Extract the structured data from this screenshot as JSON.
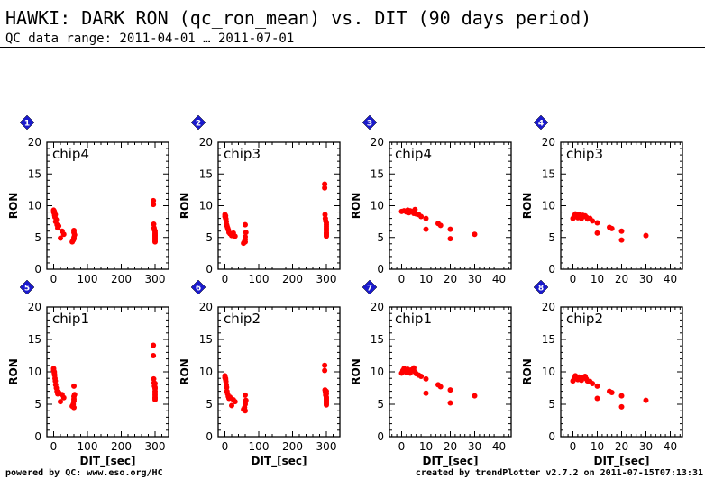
{
  "header": {
    "title": "HAWKI: DARK RON (qc_ron_mean) vs. DIT (90 days period)",
    "subtitle": "QC data range: 2011-04-01 … 2011-07-01"
  },
  "footer": {
    "left": "powered by QC: www.eso.org/HC",
    "right": "created by trendPlotter v2.7.2 on 2011-07-15T07:13:31"
  },
  "colors": {
    "points": "#ff0000",
    "badge": "#1a1acc",
    "axis": "#000000"
  },
  "chart_data": [
    {
      "type": "scatter",
      "panel": "1",
      "label": "chip4",
      "ylabel": "RON",
      "xlabel": "",
      "xlim": [
        -20,
        340
      ],
      "ylim": [
        0,
        20
      ],
      "xticks": [
        0,
        100,
        200,
        300
      ],
      "yticks": [
        0,
        5,
        10,
        15,
        20
      ],
      "series": [
        {
          "x": [
            0,
            0,
            2,
            2,
            3,
            4,
            5,
            6,
            8,
            10,
            12,
            15,
            20,
            25,
            30,
            55,
            58,
            60,
            60,
            62,
            60,
            60,
            295,
            295,
            296,
            297,
            298,
            300,
            300,
            300,
            300,
            300,
            300,
            300,
            300,
            300
          ],
          "y": [
            9.3,
            9.0,
            8.8,
            9.1,
            8.5,
            8.2,
            8.6,
            7.5,
            7.8,
            7.0,
            6.5,
            6.8,
            4.9,
            6.0,
            5.5,
            4.3,
            4.6,
            5.0,
            6.1,
            5.4,
            4.8,
            5.8,
            10.8,
            10.2,
            7.1,
            6.5,
            6.2,
            6.0,
            5.7,
            5.5,
            5.3,
            5.1,
            4.9,
            4.7,
            4.5,
            4.3
          ]
        }
      ]
    },
    {
      "type": "scatter",
      "panel": "2",
      "label": "chip3",
      "ylabel": "RON",
      "xlabel": "",
      "xlim": [
        -20,
        340
      ],
      "ylim": [
        0,
        20
      ],
      "xticks": [
        0,
        100,
        200,
        300
      ],
      "yticks": [
        0,
        5,
        10,
        15,
        20
      ],
      "series": [
        {
          "x": [
            0,
            0,
            2,
            2,
            3,
            4,
            5,
            6,
            8,
            10,
            12,
            15,
            20,
            25,
            30,
            55,
            58,
            60,
            60,
            62,
            60,
            60,
            295,
            295,
            296,
            297,
            298,
            300,
            300,
            300,
            300,
            300,
            300,
            300,
            300,
            300
          ],
          "y": [
            8.6,
            8.3,
            8.0,
            8.4,
            7.9,
            7.5,
            7.0,
            6.8,
            6.5,
            6.2,
            5.8,
            5.6,
            5.3,
            5.7,
            5.2,
            4.1,
            4.4,
            4.7,
            7.0,
            5.8,
            4.3,
            5.1,
            13.4,
            12.8,
            8.6,
            8.0,
            7.6,
            7.3,
            7.0,
            6.7,
            6.4,
            6.1,
            5.8,
            5.6,
            5.4,
            5.2
          ]
        }
      ]
    },
    {
      "type": "scatter",
      "panel": "3",
      "label": "chip4",
      "ylabel": "RON",
      "xlabel": "",
      "xlim": [
        -5,
        45
      ],
      "ylim": [
        0,
        20
      ],
      "xticks": [
        0,
        10,
        20,
        30,
        40
      ],
      "yticks": [
        0,
        5,
        10,
        15,
        20
      ],
      "series": [
        {
          "x": [
            0,
            1,
            2,
            2.5,
            3,
            3.5,
            4,
            5,
            5.5,
            6,
            7,
            8,
            10,
            10,
            15,
            16,
            20,
            20,
            30
          ],
          "y": [
            9.1,
            9.2,
            9.0,
            9.3,
            8.9,
            9.2,
            9.1,
            8.8,
            9.4,
            8.7,
            8.6,
            8.3,
            8.0,
            6.3,
            7.2,
            6.9,
            6.3,
            4.8,
            5.5
          ]
        }
      ]
    },
    {
      "type": "scatter",
      "panel": "4",
      "label": "chip3",
      "ylabel": "RON",
      "xlabel": "",
      "xlim": [
        -5,
        45
      ],
      "ylim": [
        0,
        20
      ],
      "xticks": [
        0,
        10,
        20,
        30,
        40
      ],
      "yticks": [
        0,
        5,
        10,
        15,
        20
      ],
      "series": [
        {
          "x": [
            0,
            0.5,
            1,
            2,
            2.5,
            3,
            3.5,
            4,
            5,
            5.5,
            6,
            7,
            8,
            10,
            10,
            15,
            16,
            20,
            20,
            30
          ],
          "y": [
            8.0,
            8.4,
            8.7,
            8.1,
            8.6,
            8.3,
            8.0,
            8.5,
            8.4,
            8.2,
            7.9,
            8.0,
            7.6,
            7.3,
            5.7,
            6.6,
            6.4,
            6.0,
            4.6,
            5.3
          ]
        }
      ]
    },
    {
      "type": "scatter",
      "panel": "5",
      "label": "chip1",
      "ylabel": "RON",
      "xlabel": "DIT_[sec]",
      "xlim": [
        -20,
        340
      ],
      "ylim": [
        0,
        20
      ],
      "xticks": [
        0,
        100,
        200,
        300
      ],
      "yticks": [
        0,
        5,
        10,
        15,
        20
      ],
      "series": [
        {
          "x": [
            0,
            0,
            2,
            2,
            3,
            4,
            5,
            6,
            8,
            10,
            12,
            15,
            20,
            25,
            30,
            55,
            58,
            60,
            60,
            62,
            60,
            60,
            60,
            295,
            295,
            296,
            297,
            298,
            300,
            300,
            300,
            300,
            300,
            300,
            300,
            300,
            300
          ],
          "y": [
            10.5,
            10.2,
            9.8,
            10.0,
            9.5,
            9.0,
            8.6,
            8.0,
            7.5,
            7.0,
            6.6,
            6.8,
            5.4,
            6.5,
            6.0,
            4.7,
            5.0,
            5.5,
            7.8,
            6.5,
            4.5,
            5.8,
            6.2,
            14.1,
            12.5,
            8.9,
            8.3,
            7.8,
            7.4,
            7.0,
            6.7,
            6.4,
            6.1,
            5.9,
            5.7,
            8.2,
            7.6
          ]
        }
      ]
    },
    {
      "type": "scatter",
      "panel": "6",
      "label": "chip2",
      "ylabel": "RON",
      "xlabel": "DIT_[sec]",
      "xlim": [
        -20,
        340
      ],
      "ylim": [
        0,
        20
      ],
      "xticks": [
        0,
        100,
        200,
        300
      ],
      "yticks": [
        0,
        5,
        10,
        15,
        20
      ],
      "series": [
        {
          "x": [
            0,
            0,
            2,
            2,
            3,
            4,
            5,
            6,
            8,
            10,
            12,
            15,
            20,
            25,
            30,
            55,
            58,
            60,
            60,
            62,
            60,
            60,
            295,
            295,
            296,
            297,
            298,
            300,
            300,
            300,
            300,
            300,
            300,
            300,
            300,
            300
          ],
          "y": [
            9.4,
            9.1,
            8.8,
            9.0,
            8.5,
            8.0,
            7.6,
            7.0,
            6.6,
            6.2,
            5.9,
            6.1,
            4.8,
            5.7,
            5.4,
            4.2,
            4.5,
            5.0,
            6.4,
            5.6,
            4.0,
            5.3,
            11.0,
            10.2,
            7.2,
            6.8,
            6.4,
            6.1,
            5.9,
            5.7,
            5.5,
            5.3,
            5.1,
            4.9,
            6.6,
            7.0
          ]
        }
      ]
    },
    {
      "type": "scatter",
      "panel": "7",
      "label": "chip1",
      "ylabel": "RON",
      "xlabel": "DIT_[sec]",
      "xlim": [
        -5,
        45
      ],
      "ylim": [
        0,
        20
      ],
      "xticks": [
        0,
        10,
        20,
        30,
        40
      ],
      "yticks": [
        0,
        5,
        10,
        15,
        20
      ],
      "series": [
        {
          "x": [
            0,
            0.5,
            1,
            2,
            2.5,
            3,
            3.5,
            4,
            5,
            5.5,
            6,
            7,
            8,
            10,
            10,
            15,
            16,
            20,
            20,
            30
          ],
          "y": [
            9.8,
            10.2,
            10.5,
            9.9,
            10.4,
            10.1,
            9.8,
            10.3,
            10.6,
            10.0,
            9.7,
            9.5,
            9.3,
            8.9,
            6.7,
            8.0,
            7.7,
            7.2,
            5.2,
            6.3
          ]
        }
      ]
    },
    {
      "type": "scatter",
      "panel": "8",
      "label": "chip2",
      "ylabel": "RON",
      "xlabel": "DIT_[sec]",
      "xlim": [
        -5,
        45
      ],
      "ylim": [
        0,
        20
      ],
      "xticks": [
        0,
        10,
        20,
        30,
        40
      ],
      "yticks": [
        0,
        5,
        10,
        15,
        20
      ],
      "series": [
        {
          "x": [
            0,
            0.5,
            1,
            2,
            2.5,
            3,
            3.5,
            4,
            5,
            5.5,
            6,
            7,
            8,
            10,
            10,
            15,
            16,
            20,
            20,
            30
          ],
          "y": [
            8.6,
            9.0,
            9.4,
            8.8,
            9.2,
            9.0,
            8.7,
            9.1,
            9.3,
            8.9,
            8.6,
            8.5,
            8.2,
            7.8,
            5.9,
            7.0,
            6.8,
            6.3,
            4.6,
            5.6
          ]
        }
      ]
    }
  ]
}
